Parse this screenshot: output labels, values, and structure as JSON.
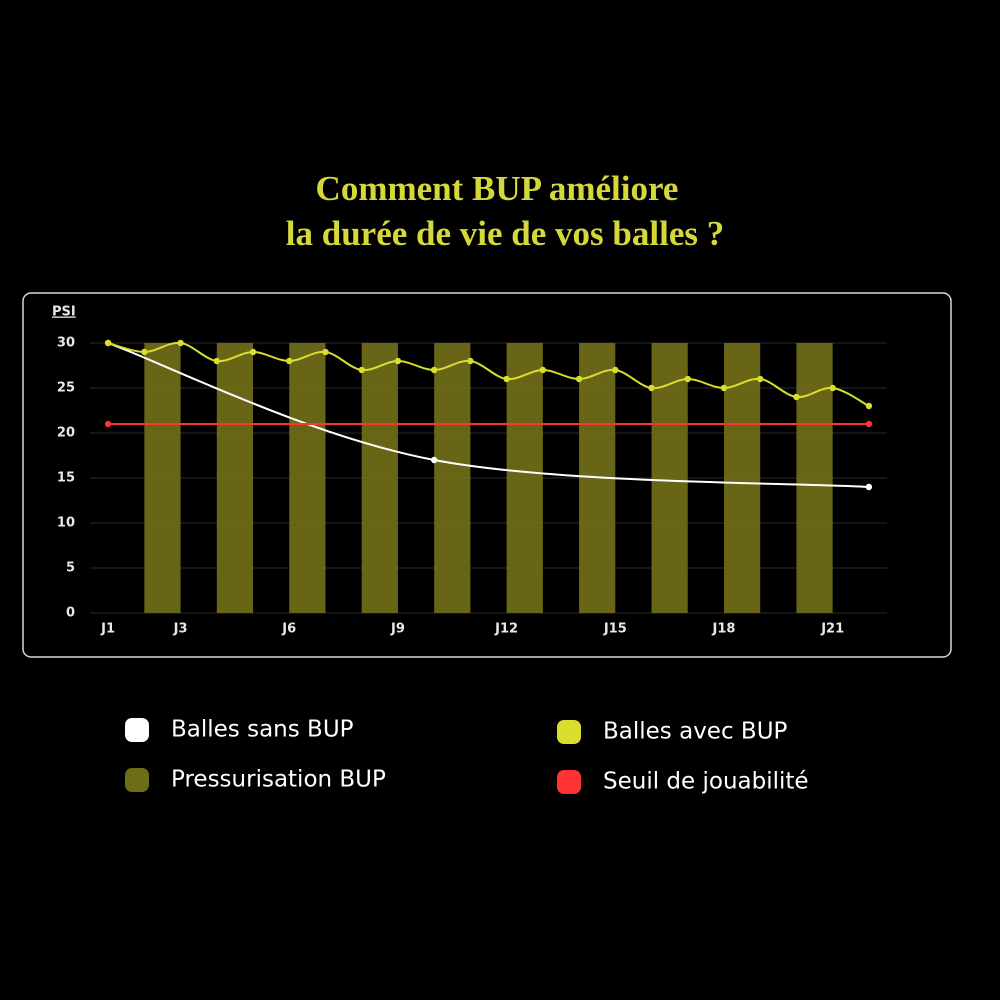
{
  "chart_data": {
    "type": "line",
    "title": [
      "Comment BUP améliore",
      "la durée de vie de vos balles ?"
    ],
    "y_label": "PSI",
    "xlim": [
      0.5,
      22.5
    ],
    "xticks": [
      {
        "value": 1,
        "label": "J1"
      },
      {
        "value": 3,
        "label": "J3"
      },
      {
        "value": 6,
        "label": "J6"
      },
      {
        "value": 9,
        "label": "J9"
      },
      {
        "value": 12,
        "label": "J12"
      },
      {
        "value": 15,
        "label": "J15"
      },
      {
        "value": 18,
        "label": "J18"
      },
      {
        "value": 21,
        "label": "J21"
      }
    ],
    "ylim": [
      0,
      30
    ],
    "yticks": [
      0,
      5,
      10,
      15,
      20,
      25,
      30
    ],
    "grid": true,
    "legend": "bottom",
    "series": [
      {
        "name": "Balles sans BUP",
        "color": "#ffffff",
        "kind": "line",
        "smooth": true,
        "x": [
          1,
          10,
          22
        ],
        "values": [
          30,
          17,
          14
        ]
      },
      {
        "name": "Balles avec BUP",
        "color": "#d8dd2e",
        "kind": "line",
        "smooth": true,
        "x": [
          1,
          2,
          3,
          4,
          5,
          6,
          7,
          8,
          9,
          10,
          11,
          12,
          13,
          14,
          15,
          16,
          17,
          18,
          19,
          20,
          21,
          22
        ],
        "values": [
          30,
          29,
          30,
          28,
          29,
          28,
          29,
          27,
          28,
          27,
          28,
          26,
          27,
          26,
          27,
          25,
          26,
          25,
          26,
          24,
          25,
          23
        ]
      },
      {
        "name": "Pressurisation BUP",
        "color": "#6e6c17",
        "kind": "bar",
        "width": 1,
        "x": [
          2.5,
          4.5,
          6.5,
          8.5,
          10.5,
          12.5,
          14.5,
          16.5,
          18.5,
          20.5
        ],
        "values": [
          30,
          30,
          30,
          30,
          30,
          30,
          30,
          30,
          30,
          30
        ]
      },
      {
        "name": "Seuil de jouabilité",
        "color": "#ff3333",
        "kind": "line",
        "smooth": false,
        "x": [
          1,
          22
        ],
        "values": [
          21,
          21
        ]
      }
    ]
  }
}
